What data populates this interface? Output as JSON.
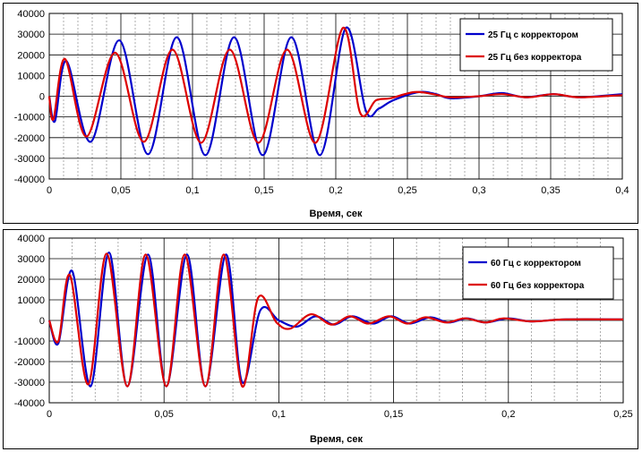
{
  "chart_data": [
    {
      "type": "line",
      "title": "",
      "xlabel": "Время, сек",
      "ylabel": "",
      "xlim": [
        0,
        0.4
      ],
      "ylim": [
        -40000,
        40000
      ],
      "x_ticks": [
        0,
        0.05,
        0.1,
        0.15,
        0.2,
        0.25,
        0.3,
        0.35,
        0.4
      ],
      "x_tick_labels": [
        "0",
        "0,05",
        "0,1",
        "0,15",
        "0,2",
        "0,25",
        "0,3",
        "0,35",
        "0,4"
      ],
      "y_ticks": [
        -40000,
        -30000,
        -20000,
        -10000,
        0,
        10000,
        20000,
        30000,
        40000
      ],
      "y_tick_labels": [
        "-40000",
        "-30000",
        "-20000",
        "-10000",
        "0",
        "10000",
        "20000",
        "30000",
        "40000"
      ],
      "grid": true,
      "legend_position": "top-right",
      "series": [
        {
          "name": "25 Гц с корректором",
          "color": "#0000cc",
          "points": [
            [
              0,
              0
            ],
            [
              0.004,
              -12000
            ],
            [
              0.012,
              17000
            ],
            [
              0.029,
              -22000
            ],
            [
              0.049,
              27000
            ],
            [
              0.069,
              -28000
            ],
            [
              0.089,
              28500
            ],
            [
              0.109,
              -28500
            ],
            [
              0.129,
              28500
            ],
            [
              0.149,
              -28500
            ],
            [
              0.169,
              28500
            ],
            [
              0.189,
              -28500
            ],
            [
              0.207,
              33000
            ],
            [
              0.221,
              -7000
            ],
            [
              0.23,
              -6000
            ],
            [
              0.24,
              -2000
            ],
            [
              0.258,
              2000
            ],
            [
              0.27,
              1000
            ],
            [
              0.28,
              -1000
            ],
            [
              0.3,
              0
            ],
            [
              0.316,
              1500
            ],
            [
              0.332,
              -500
            ],
            [
              0.352,
              1000
            ],
            [
              0.37,
              -500
            ],
            [
              0.4,
              1000
            ]
          ]
        },
        {
          "name": "25 Гц без корректора",
          "color": "#dd0000",
          "points": [
            [
              0,
              0
            ],
            [
              0.003,
              -11000
            ],
            [
              0.011,
              18000
            ],
            [
              0.026,
              -19500
            ],
            [
              0.046,
              21000
            ],
            [
              0.066,
              -22000
            ],
            [
              0.086,
              22500
            ],
            [
              0.106,
              -22500
            ],
            [
              0.126,
              22500
            ],
            [
              0.146,
              -22500
            ],
            [
              0.166,
              22500
            ],
            [
              0.186,
              -22500
            ],
            [
              0.205,
              33000
            ],
            [
              0.217,
              -8000
            ],
            [
              0.228,
              -2000
            ],
            [
              0.238,
              -1000
            ],
            [
              0.255,
              2000
            ],
            [
              0.268,
              1000
            ],
            [
              0.28,
              -500
            ],
            [
              0.3,
              0
            ],
            [
              0.316,
              1000
            ],
            [
              0.334,
              -500
            ],
            [
              0.352,
              1000
            ],
            [
              0.37,
              -500
            ],
            [
              0.4,
              500
            ]
          ]
        }
      ]
    },
    {
      "type": "line",
      "title": "",
      "xlabel": "Время, сек",
      "ylabel": "",
      "xlim": [
        0,
        0.25
      ],
      "ylim": [
        -40000,
        40000
      ],
      "x_ticks": [
        0,
        0.05,
        0.1,
        0.15,
        0.2,
        0.25
      ],
      "x_tick_labels": [
        "0",
        "0,05",
        "0,1",
        "0,15",
        "0,2",
        "0,25"
      ],
      "y_ticks": [
        -40000,
        -30000,
        -20000,
        -10000,
        0,
        10000,
        20000,
        30000,
        40000
      ],
      "y_tick_labels": [
        "-40000",
        "-30000",
        "-20000",
        "-10000",
        "0",
        "10000",
        "20000",
        "30000",
        "40000"
      ],
      "grid": true,
      "legend_position": "top-right",
      "series": [
        {
          "name": "60 Гц с корректором",
          "color": "#0000cc",
          "points": [
            [
              0,
              0
            ],
            [
              0.004,
              -11000
            ],
            [
              0.01,
              24000
            ],
            [
              0.018,
              -32000
            ],
            [
              0.026,
              33000
            ],
            [
              0.034,
              -32000
            ],
            [
              0.043,
              32000
            ],
            [
              0.051,
              -32000
            ],
            [
              0.06,
              32000
            ],
            [
              0.068,
              -32000
            ],
            [
              0.077,
              32000
            ],
            [
              0.084,
              -30000
            ],
            [
              0.092,
              5000
            ],
            [
              0.1,
              0
            ],
            [
              0.108,
              -3000
            ],
            [
              0.116,
              2000
            ],
            [
              0.124,
              -2000
            ],
            [
              0.132,
              2000
            ],
            [
              0.141,
              -1500
            ],
            [
              0.149,
              2000
            ],
            [
              0.157,
              -1500
            ],
            [
              0.166,
              1500
            ],
            [
              0.174,
              -1000
            ],
            [
              0.182,
              1000
            ],
            [
              0.19,
              -1000
            ],
            [
              0.2,
              1000
            ],
            [
              0.21,
              -500
            ],
            [
              0.225,
              500
            ],
            [
              0.25,
              500
            ]
          ]
        },
        {
          "name": "60 Гц без корректора",
          "color": "#dd0000",
          "points": [
            [
              0,
              0
            ],
            [
              0.004,
              -10000
            ],
            [
              0.009,
              22000
            ],
            [
              0.017,
              -31000
            ],
            [
              0.025,
              32500
            ],
            [
              0.034,
              -32000
            ],
            [
              0.042,
              32000
            ],
            [
              0.051,
              -32000
            ],
            [
              0.059,
              32000
            ],
            [
              0.068,
              -32000
            ],
            [
              0.076,
              32000
            ],
            [
              0.084,
              -32000
            ],
            [
              0.091,
              11000
            ],
            [
              0.099,
              -1000
            ],
            [
              0.105,
              -4000
            ],
            [
              0.114,
              3000
            ],
            [
              0.123,
              -2000
            ],
            [
              0.131,
              2000
            ],
            [
              0.139,
              -1500
            ],
            [
              0.148,
              2000
            ],
            [
              0.156,
              -1500
            ],
            [
              0.164,
              1500
            ],
            [
              0.173,
              -1000
            ],
            [
              0.181,
              1000
            ],
            [
              0.19,
              -1000
            ],
            [
              0.198,
              1000
            ],
            [
              0.21,
              -500
            ],
            [
              0.225,
              500
            ],
            [
              0.25,
              500
            ]
          ]
        }
      ]
    }
  ]
}
